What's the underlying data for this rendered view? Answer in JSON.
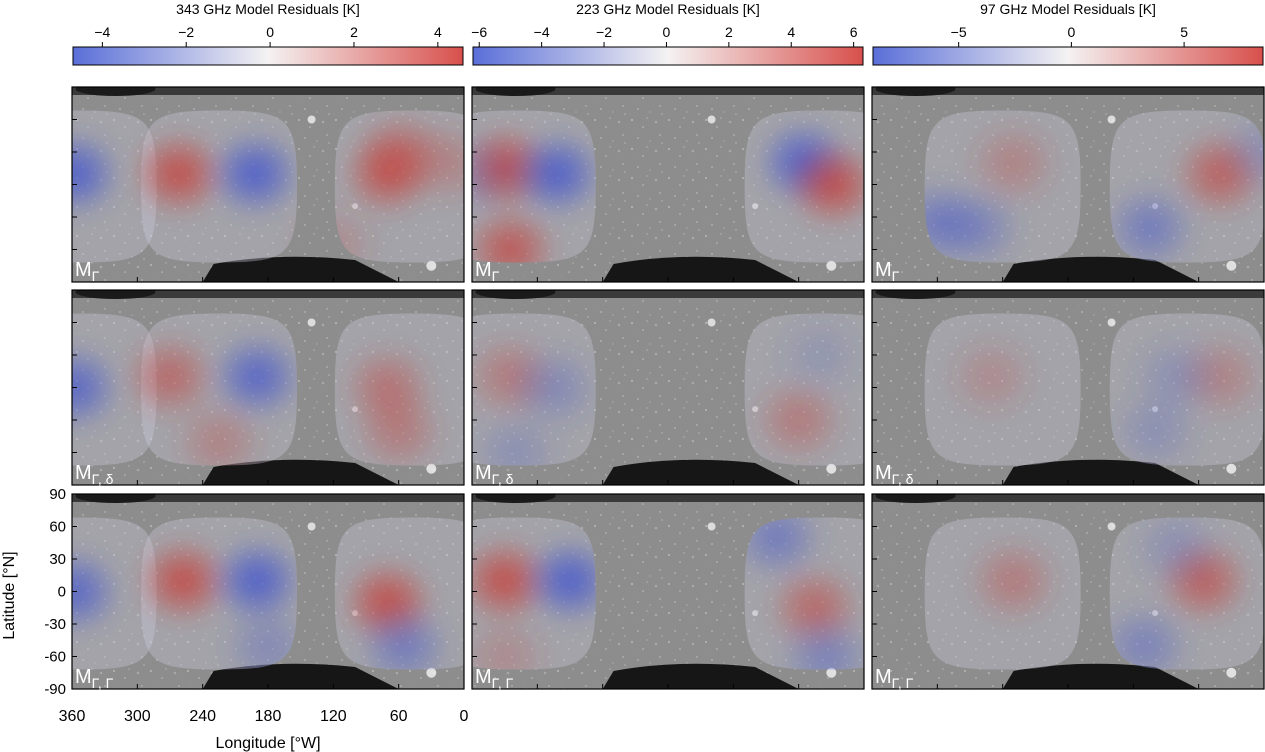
{
  "chart_data": {
    "type": "heatmap",
    "colormap": {
      "low": "#5a6fd8",
      "mid": "#f4f2f2",
      "high": "#d8504c"
    },
    "colorbars": [
      {
        "title": "343 GHz Model Residuals [K]",
        "range": [
          -4.7,
          4.6
        ],
        "ticks": [
          -4,
          -2,
          0,
          2,
          4
        ],
        "tick_labels": [
          "−4",
          "−2",
          "0",
          "2",
          "4"
        ]
      },
      {
        "title": "223 GHz Model Residuals [K]",
        "range": [
          -6.2,
          6.3
        ],
        "ticks": [
          -6,
          -4,
          -2,
          0,
          2,
          4,
          6
        ],
        "tick_labels": [
          "−6",
          "−4",
          "−2",
          "0",
          "2",
          "4",
          "6"
        ]
      },
      {
        "title": "97 GHz Model Residuals [K]",
        "range": [
          -8.8,
          8.5
        ],
        "ticks": [
          -5,
          0,
          5
        ],
        "tick_labels": [
          "−5",
          "0",
          "5"
        ]
      }
    ],
    "row_labels": [
      {
        "base": "M",
        "sub": "Γ"
      },
      {
        "base": "M",
        "sub": "Γ, δ"
      },
      {
        "base": "M",
        "sub": "Γ, Γ"
      }
    ],
    "xaxis": {
      "label": "Longitude [°W]",
      "range": [
        360,
        0
      ],
      "ticks": [
        360,
        300,
        240,
        180,
        120,
        60,
        0
      ],
      "tick_labels": [
        "360",
        "300",
        "240",
        "180",
        "120",
        "60",
        "0"
      ]
    },
    "yaxis": {
      "label": "Latitude [°N]",
      "range": [
        -90,
        90
      ],
      "ticks": [
        90,
        60,
        30,
        0,
        -30,
        -60,
        -90
      ],
      "tick_labels": [
        "90",
        "60",
        "30",
        "0",
        "-30",
        "-60",
        "-90"
      ]
    },
    "observed_hemispheres": [
      {
        "column": 0,
        "center_lon_W": [
          225,
          47,
          354
        ]
      },
      {
        "column": 1,
        "center_lon_W": [
          318,
          38
        ]
      },
      {
        "column": 2,
        "center_lon_W": [
          240,
          70
        ]
      }
    ],
    "residual_blobs": [
      {
        "row": 0,
        "col": 0,
        "blobs": [
          [
            262,
            10,
            1
          ],
          [
            192,
            10,
            -1
          ],
          [
            70,
            10,
            0.9
          ],
          [
            58,
            30,
            0.6
          ],
          [
            15,
            20,
            0.4
          ],
          [
            358,
            10,
            -1
          ],
          [
            120,
            -55,
            0.3
          ]
        ]
      },
      {
        "row": 0,
        "col": 1,
        "blobs": [
          [
            330,
            15,
            1
          ],
          [
            325,
            -60,
            0.9
          ],
          [
            282,
            10,
            -1
          ],
          [
            355,
            10,
            -0.3
          ],
          [
            55,
            20,
            -1
          ],
          [
            28,
            0,
            1
          ]
        ]
      },
      {
        "row": 0,
        "col": 2,
        "blobs": [
          [
            230,
            20,
            0.4
          ],
          [
            300,
            -35,
            -0.6
          ],
          [
            265,
            -40,
            -0.5
          ],
          [
            40,
            10,
            0.8
          ],
          [
            105,
            -40,
            -0.6
          ],
          [
            0,
            30,
            -0.3
          ]
        ]
      },
      {
        "row": 1,
        "col": 0,
        "blobs": [
          [
            270,
            10,
            0.7
          ],
          [
            190,
            10,
            -0.9
          ],
          [
            70,
            0,
            0.6
          ],
          [
            60,
            -40,
            0.5
          ],
          [
            358,
            0,
            -0.9
          ],
          [
            225,
            -50,
            0.4
          ]
        ]
      },
      {
        "row": 1,
        "col": 1,
        "blobs": [
          [
            325,
            10,
            0.5
          ],
          [
            285,
            0,
            -0.4
          ],
          [
            320,
            -60,
            -0.3
          ],
          [
            60,
            -30,
            0.5
          ],
          [
            40,
            30,
            -0.2
          ]
        ]
      },
      {
        "row": 1,
        "col": 2,
        "blobs": [
          [
            250,
            10,
            0.3
          ],
          [
            40,
            10,
            0.4
          ],
          [
            80,
            10,
            -0.3
          ],
          [
            100,
            -40,
            -0.3
          ]
        ]
      },
      {
        "row": 2,
        "col": 0,
        "blobs": [
          [
            258,
            10,
            1
          ],
          [
            190,
            10,
            -1
          ],
          [
            70,
            -10,
            1
          ],
          [
            55,
            -50,
            -0.6
          ],
          [
            358,
            0,
            -0.9
          ],
          [
            180,
            -50,
            -0.4
          ]
        ]
      },
      {
        "row": 2,
        "col": 1,
        "blobs": [
          [
            330,
            10,
            1
          ],
          [
            270,
            10,
            -1
          ],
          [
            330,
            -60,
            0.3
          ],
          [
            80,
            50,
            -0.6
          ],
          [
            45,
            -15,
            0.7
          ],
          [
            35,
            -60,
            -0.5
          ]
        ]
      },
      {
        "row": 2,
        "col": 2,
        "blobs": [
          [
            230,
            10,
            0.5
          ],
          [
            55,
            10,
            0.8
          ],
          [
            110,
            -50,
            -0.5
          ],
          [
            80,
            40,
            -0.3
          ]
        ]
      }
    ]
  }
}
